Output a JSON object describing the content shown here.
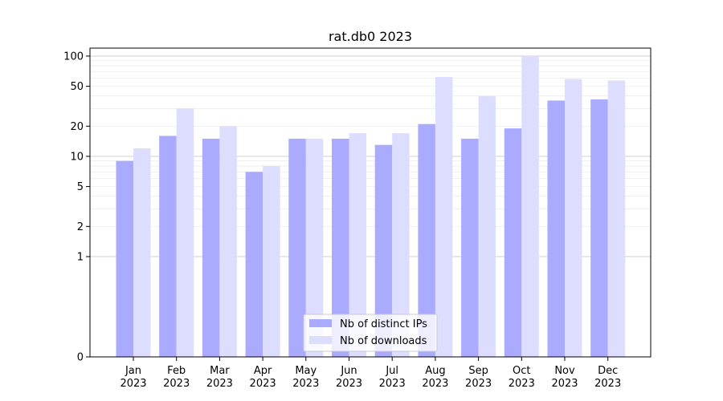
{
  "chart_data": {
    "type": "bar",
    "title": "rat.db0 2023",
    "xlabel": "",
    "ylabel": "",
    "y_scale": "symlog",
    "ylim": [
      0,
      120
    ],
    "y_ticks": [
      0,
      1,
      2,
      5,
      10,
      20,
      50,
      100
    ],
    "grid": "y",
    "legend_position": "lower-center",
    "categories": [
      "Jan",
      "Feb",
      "Mar",
      "Apr",
      "May",
      "Jun",
      "Jul",
      "Aug",
      "Sep",
      "Oct",
      "Nov",
      "Dec"
    ],
    "category_sublabel": "2023",
    "series": [
      {
        "name": "Nb of distinct IPs",
        "color": "#aaaaff",
        "values": [
          9,
          16,
          15,
          7,
          15,
          15,
          13,
          21,
          15,
          19,
          36,
          37
        ]
      },
      {
        "name": "Nb of downloads",
        "color": "#ddddff",
        "values": [
          12,
          30,
          20,
          8,
          15,
          17,
          17,
          62,
          40,
          100,
          59,
          57
        ]
      }
    ]
  }
}
